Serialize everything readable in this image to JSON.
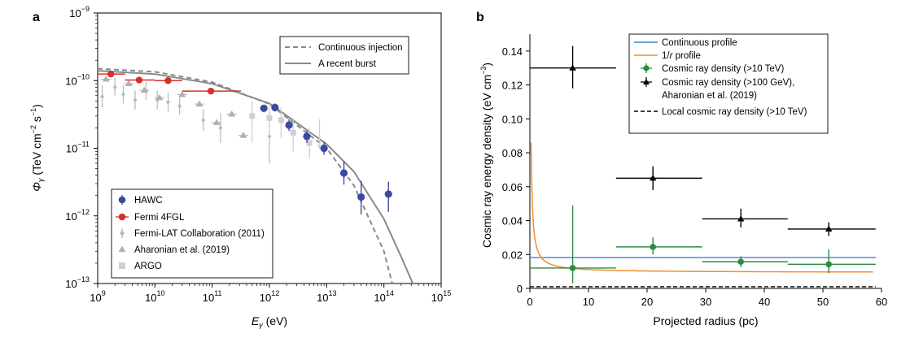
{
  "chart_data": [
    {
      "panel": "a",
      "type": "scatter",
      "x_scale": "log",
      "y_scale": "log",
      "xlim": [
        1000000000.0,
        1000000000000000.0
      ],
      "ylim": [
        1e-13,
        1e-09
      ],
      "xlabel": "E",
      "xlabel_sub": "γ",
      "xlabel_unit": " (eV)",
      "ylabel": "Φ",
      "ylabel_sub": "γ",
      "ylabel_unit": " (TeV cm",
      "ylabel_unit_sup1": "−2",
      "ylabel_unit_mid": " s",
      "ylabel_unit_sup2": "−1",
      "ylabel_unit_end": ")",
      "x_tick_exponents": [
        9,
        10,
        11,
        12,
        13,
        14,
        15
      ],
      "y_tick_exponents": [
        -13,
        -12,
        -11,
        -10,
        -9
      ],
      "tick_base": "10",
      "legend_top": {
        "placement": "top-right",
        "items": [
          {
            "label": "Continuous injection",
            "style": "dashed"
          },
          {
            "label": "A recent burst",
            "style": "solid"
          }
        ]
      },
      "legend_bottom": {
        "placement": "bottom-left",
        "items": [
          {
            "label": "HAWC",
            "marker": "circle",
            "color": "#3b4aa0"
          },
          {
            "label": "Fermi 4FGL",
            "marker": "circle",
            "color": "#d7302c"
          },
          {
            "label": "Fermi-LAT Collaboration (2011)",
            "marker": "diamond",
            "color": "#b8b8b8"
          },
          {
            "label": "Aharonian et al. (2019)",
            "marker": "triangle",
            "color": "#b0b0b0"
          },
          {
            "label": "ARGO",
            "marker": "square",
            "color": "#cfcfcf"
          }
        ]
      },
      "curves": [
        {
          "name": "Continuous injection",
          "style": "dashed",
          "color": "#8a8a8a",
          "points": [
            [
              1000000000.0,
              1.5e-10
            ],
            [
              10000000000.0,
              1.35e-10
            ],
            [
              100000000000.0,
              9.5e-11
            ],
            [
              1000000000000.0,
              4.5e-11
            ],
            [
              10000000000000.0,
              1e-11
            ],
            [
              30000000000000.0,
              2.8e-12
            ],
            [
              100000000000000.0,
              3e-13
            ],
            [
              140000000000000.0,
              1e-13
            ]
          ]
        },
        {
          "name": "A recent burst",
          "style": "solid",
          "color": "#8a8a8a",
          "points": [
            [
              1000000000.0,
              1.4e-10
            ],
            [
              10000000000.0,
              1.25e-10
            ],
            [
              100000000000.0,
              9e-11
            ],
            [
              1000000000000.0,
              4.6e-11
            ],
            [
              10000000000000.0,
              1.15e-11
            ],
            [
              30000000000000.0,
              4.5e-12
            ],
            [
              100000000000000.0,
              9e-13
            ],
            [
              200000000000000.0,
              2.5e-13
            ],
            [
              320000000000000.0,
              1e-13
            ]
          ]
        }
      ],
      "series": [
        {
          "name": "HAWC",
          "marker": "circle",
          "color": "#3b4aa0",
          "points": [
            [
              800000000000.0,
              3.9e-11,
              3.4e-11,
              4.4e-11
            ],
            [
              1250000000000.0,
              4e-11,
              3.5e-11,
              4.6e-11
            ],
            [
              2200000000000.0,
              2.2e-11,
              1.8e-11,
              2.7e-11
            ],
            [
              4500000000000.0,
              1.5e-11,
              1.2e-11,
              1.8e-11
            ],
            [
              9000000000000.0,
              1e-11,
              8e-12,
              1.25e-11
            ],
            [
              20000000000000.0,
              4.3e-12,
              2.9e-12,
              6.4e-12
            ],
            [
              40000000000000.0,
              1.9e-12,
              1.05e-12,
              3.3e-12
            ],
            [
              120000000000000.0,
              2.1e-12,
              1.15e-12,
              3.2e-12
            ]
          ]
        },
        {
          "name": "Fermi 4FGL",
          "marker": "circle",
          "color": "#d7302c",
          "points": [
            [
              1700000000.0,
              1.25e-10,
              1000000000.0,
              3000000000.0
            ],
            [
              5300000000.0,
              1.02e-10,
              3000000000.0,
              10000000000.0
            ],
            [
              17000000000.0,
              1e-10,
              10000000000.0,
              30000000000.0
            ],
            [
              95000000000.0,
              7e-11,
              30000000000.0,
              320000000000.0
            ]
          ]
        },
        {
          "name": "Fermi-LAT Collaboration (2011)",
          "marker": "diamond",
          "color": "#b8b8b8",
          "points": [
            [
              1200000000.0,
              5.8e-11,
              4e-11,
              8.5e-11
            ],
            [
              2000000000.0,
              8e-11,
              6e-11,
              1.1e-10
            ],
            [
              2800000000.0,
              6.3e-11,
              4.6e-11,
              8.5e-11
            ],
            [
              4500000000.0,
              5.2e-11,
              3.7e-11,
              7.2e-11
            ],
            [
              7000000000.0,
              7e-11,
              5.2e-11,
              9.5e-11
            ],
            [
              11000000000.0,
              5.2e-11,
              3.8e-11,
              7.1e-11
            ],
            [
              17000000000.0,
              4.8e-11,
              3.5e-11,
              6.7e-11
            ],
            [
              27000000000.0,
              4.2e-11,
              3.1e-11,
              5.6e-11
            ],
            [
              70000000000.0,
              2.6e-11,
              1.8e-11,
              3.8e-11
            ],
            [
              140000000000.0,
              2e-11,
              1.2e-11,
              3.3e-11
            ],
            [
              1000000000000.0,
              1.5e-11,
              6e-12,
              3.5e-11
            ]
          ]
        },
        {
          "name": "Aharonian et al. (2019)",
          "marker": "triangle",
          "color": "#b0b0b0",
          "points": [
            [
              1400000000.0,
              1.05e-10
            ],
            [
              3500000000.0,
              9e-11
            ],
            [
              6500000000.0,
              7.2e-11
            ],
            [
              12000000000.0,
              5.6e-11
            ],
            [
              30000000000.0,
              6.2e-11
            ],
            [
              60000000000.0,
              4.5e-11
            ],
            [
              120000000000.0,
              2.4e-11
            ],
            [
              220000000000.0,
              3.2e-11
            ],
            [
              350000000000.0,
              1.55e-11
            ]
          ]
        },
        {
          "name": "ARGO",
          "marker": "square",
          "color": "#cfcfcf",
          "points": [
            [
              500000000000.0,
              3e-11,
              1.2e-11,
              5e-11
            ],
            [
              1000000000000.0,
              2.8e-11,
              1.5e-11,
              4.5e-11
            ],
            [
              1600000000000.0,
              2.6e-11,
              1.4e-11,
              4e-11
            ],
            [
              2600000000000.0,
              1.7e-11,
              9e-12,
              2.8e-11
            ],
            [
              5000000000000.0,
              1.2e-11,
              7e-12,
              2e-11
            ]
          ]
        }
      ]
    },
    {
      "panel": "b",
      "type": "scatter",
      "xlim": [
        0,
        60
      ],
      "ylim": [
        0,
        0.15
      ],
      "xlabel": "Projected radius (pc)",
      "ylabel": "Cosmic ray energy density (eV cm",
      "ylabel_sup": "−3",
      "ylabel_end": ")",
      "x_ticks": [
        "0",
        "10",
        "20",
        "30",
        "40",
        "50",
        "60"
      ],
      "y_ticks": [
        "0",
        "0.02",
        "0.04",
        "0.06",
        "0.08",
        "0.10",
        "0.12",
        "0.14"
      ],
      "legend": {
        "placement": "top-right",
        "items": [
          {
            "label": "Continuous profile",
            "line": "solid",
            "color": "#3a86c8"
          },
          {
            "label_pre": "1/",
            "label_italic": "r",
            "label_post": " profile",
            "line": "solid",
            "color": "#f28e2b"
          },
          {
            "label": "Cosmic ray density (>10 TeV)",
            "marker": "circle",
            "color": "#2e8b3e"
          },
          {
            "label": "Cosmic ray density (>100 GeV),",
            "label2": "Aharonian et al. (2019)",
            "marker": "triangle",
            "color": "#000000"
          },
          {
            "label": "Local cosmic ray density (>10 TeV)",
            "line": "dashed",
            "color": "#000000"
          }
        ]
      },
      "continuous_profile": {
        "y": 0.0182,
        "color": "#3a86c8"
      },
      "r_profile": {
        "color": "#f28e2b",
        "note": "1/r shape; 0.086 at x=0.2",
        "amplitude": 0.0172,
        "offset": 0.0094
      },
      "local_density": {
        "y": 0.001,
        "color": "#000000"
      },
      "series": [
        {
          "name": "Cosmic ray density (>10 TeV)",
          "color": "#2e8b3e",
          "points": [
            [
              7.3,
              0.012,
              0.0,
              14.7,
              0.003,
              0.049
            ],
            [
              21,
              0.0245,
              14.7,
              29.4,
              0.02,
              0.03
            ],
            [
              36,
              0.0157,
              29.4,
              44,
              0.0125,
              0.019
            ],
            [
              51,
              0.0142,
              44,
              59,
              0.009,
              0.023
            ]
          ]
        },
        {
          "name": "Cosmic ray density (>100 GeV), Aharonian et al. (2019)",
          "color": "#000000",
          "points": [
            [
              7.3,
              0.13,
              0.0,
              14.7,
              0.118,
              0.143
            ],
            [
              21,
              0.065,
              14.7,
              29.4,
              0.058,
              0.072
            ],
            [
              36,
              0.041,
              29.4,
              44,
              0.036,
              0.047
            ],
            [
              51,
              0.035,
              44,
              59,
              0.031,
              0.039
            ]
          ]
        }
      ]
    }
  ]
}
